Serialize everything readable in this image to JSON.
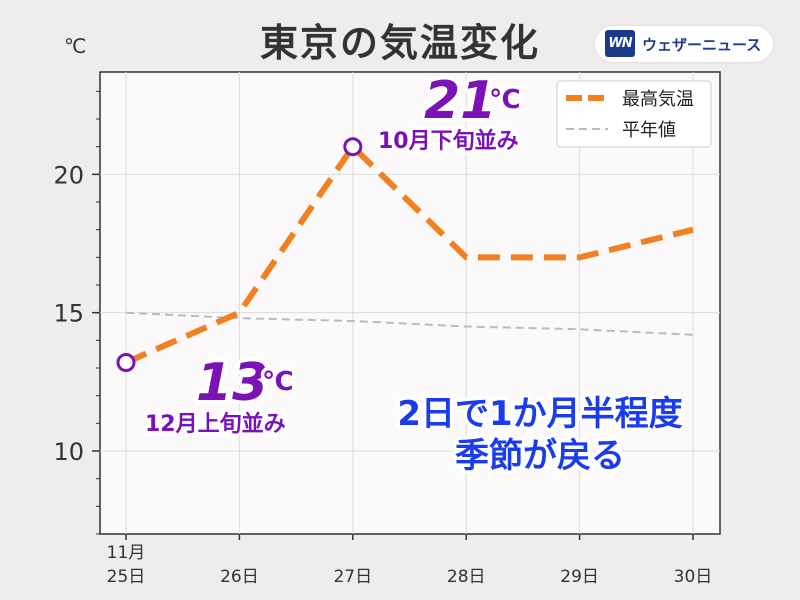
{
  "title": "東京の気温変化",
  "brand": {
    "logo_text": "WN",
    "name": "ウェザーニュース"
  },
  "colors": {
    "max_temp": "#f08020",
    "normal": "#bbbbbb",
    "annotation_purple": "#7a12b8",
    "annotation_blue": "#1a3cf0",
    "plot_background": "#fbf9f9",
    "page_background": "#efecec"
  },
  "chart_data": {
    "type": "line",
    "title": "東京の気温変化",
    "y_unit": "℃",
    "xlabel": "",
    "ylabel": "",
    "categories": [
      "25日",
      "26日",
      "27日",
      "28日",
      "29日",
      "30日"
    ],
    "month_label": "11月",
    "ylim": [
      7.0,
      23.7
    ],
    "yticks": [
      10,
      15,
      20
    ],
    "grid": true,
    "legend_position": "top-right",
    "series": [
      {
        "name": "最高気温",
        "values": [
          13.2,
          15.0,
          21.0,
          17.0,
          17.0,
          18.0
        ],
        "style": "dashed-thick",
        "color": "#f08020"
      },
      {
        "name": "平年値",
        "values": [
          15.0,
          14.8,
          14.7,
          14.5,
          14.4,
          14.2
        ],
        "style": "dashed-thin",
        "color": "#bbbbbb"
      }
    ],
    "highlight_points": [
      {
        "index": 0,
        "value": 13.2
      },
      {
        "index": 2,
        "value": 21.0
      }
    ],
    "annotations": {
      "high": {
        "value_text": "21",
        "unit": "℃",
        "note": "10月下旬並み"
      },
      "low": {
        "value_text": "13",
        "unit": "℃",
        "note": "12月上旬並み"
      },
      "message": [
        "2日で1か月半程度",
        "季節が戻る"
      ]
    }
  }
}
